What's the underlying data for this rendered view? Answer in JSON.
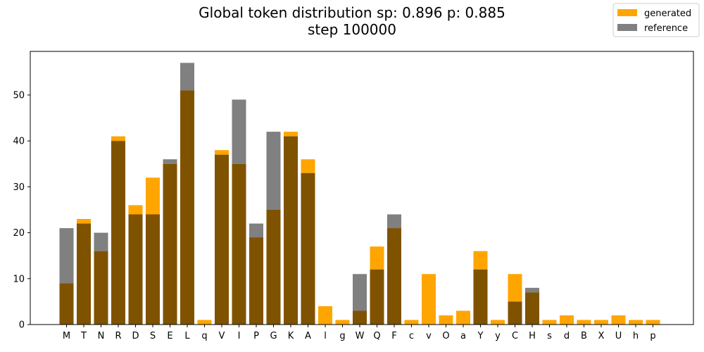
{
  "chart_data": {
    "type": "bar",
    "title": "Global token distribution sp: 0.896 p: 0.885",
    "subtitle": "step 100000",
    "xlabel": "",
    "ylabel": "",
    "ylim": [
      0,
      59.5
    ],
    "yticks": [
      0,
      10,
      20,
      30,
      40,
      50
    ],
    "grid": false,
    "legend_position": "top-right",
    "overlay": true,
    "categories": [
      "M",
      "T",
      "N",
      "R",
      "D",
      "S",
      "E",
      "L",
      "q",
      "V",
      "I",
      "P",
      "G",
      "K",
      "A",
      "l",
      "g",
      "W",
      "Q",
      "F",
      "c",
      "v",
      "O",
      "a",
      "Y",
      "y",
      "C",
      "H",
      "s",
      "d",
      "B",
      "X",
      "U",
      "h",
      "p"
    ],
    "series": [
      {
        "name": "generated",
        "color": "#ffa500",
        "values": [
          9,
          23,
          16,
          41,
          26,
          32,
          35,
          51,
          1,
          38,
          35,
          19,
          25,
          42,
          36,
          4,
          1,
          3,
          17,
          21,
          1,
          11,
          2,
          3,
          16,
          1,
          11,
          7,
          1,
          2,
          1,
          1,
          2,
          1,
          1
        ]
      },
      {
        "name": "reference",
        "color": "#808080",
        "values": [
          21,
          22,
          20,
          40,
          24,
          24,
          36,
          57,
          0,
          37,
          49,
          22,
          42,
          41,
          33,
          0,
          0,
          11,
          12,
          24,
          0,
          0,
          0,
          0,
          12,
          0,
          5,
          8,
          0,
          0,
          0,
          0,
          0,
          0,
          0
        ]
      }
    ],
    "overlap_color": "#7f5200"
  }
}
